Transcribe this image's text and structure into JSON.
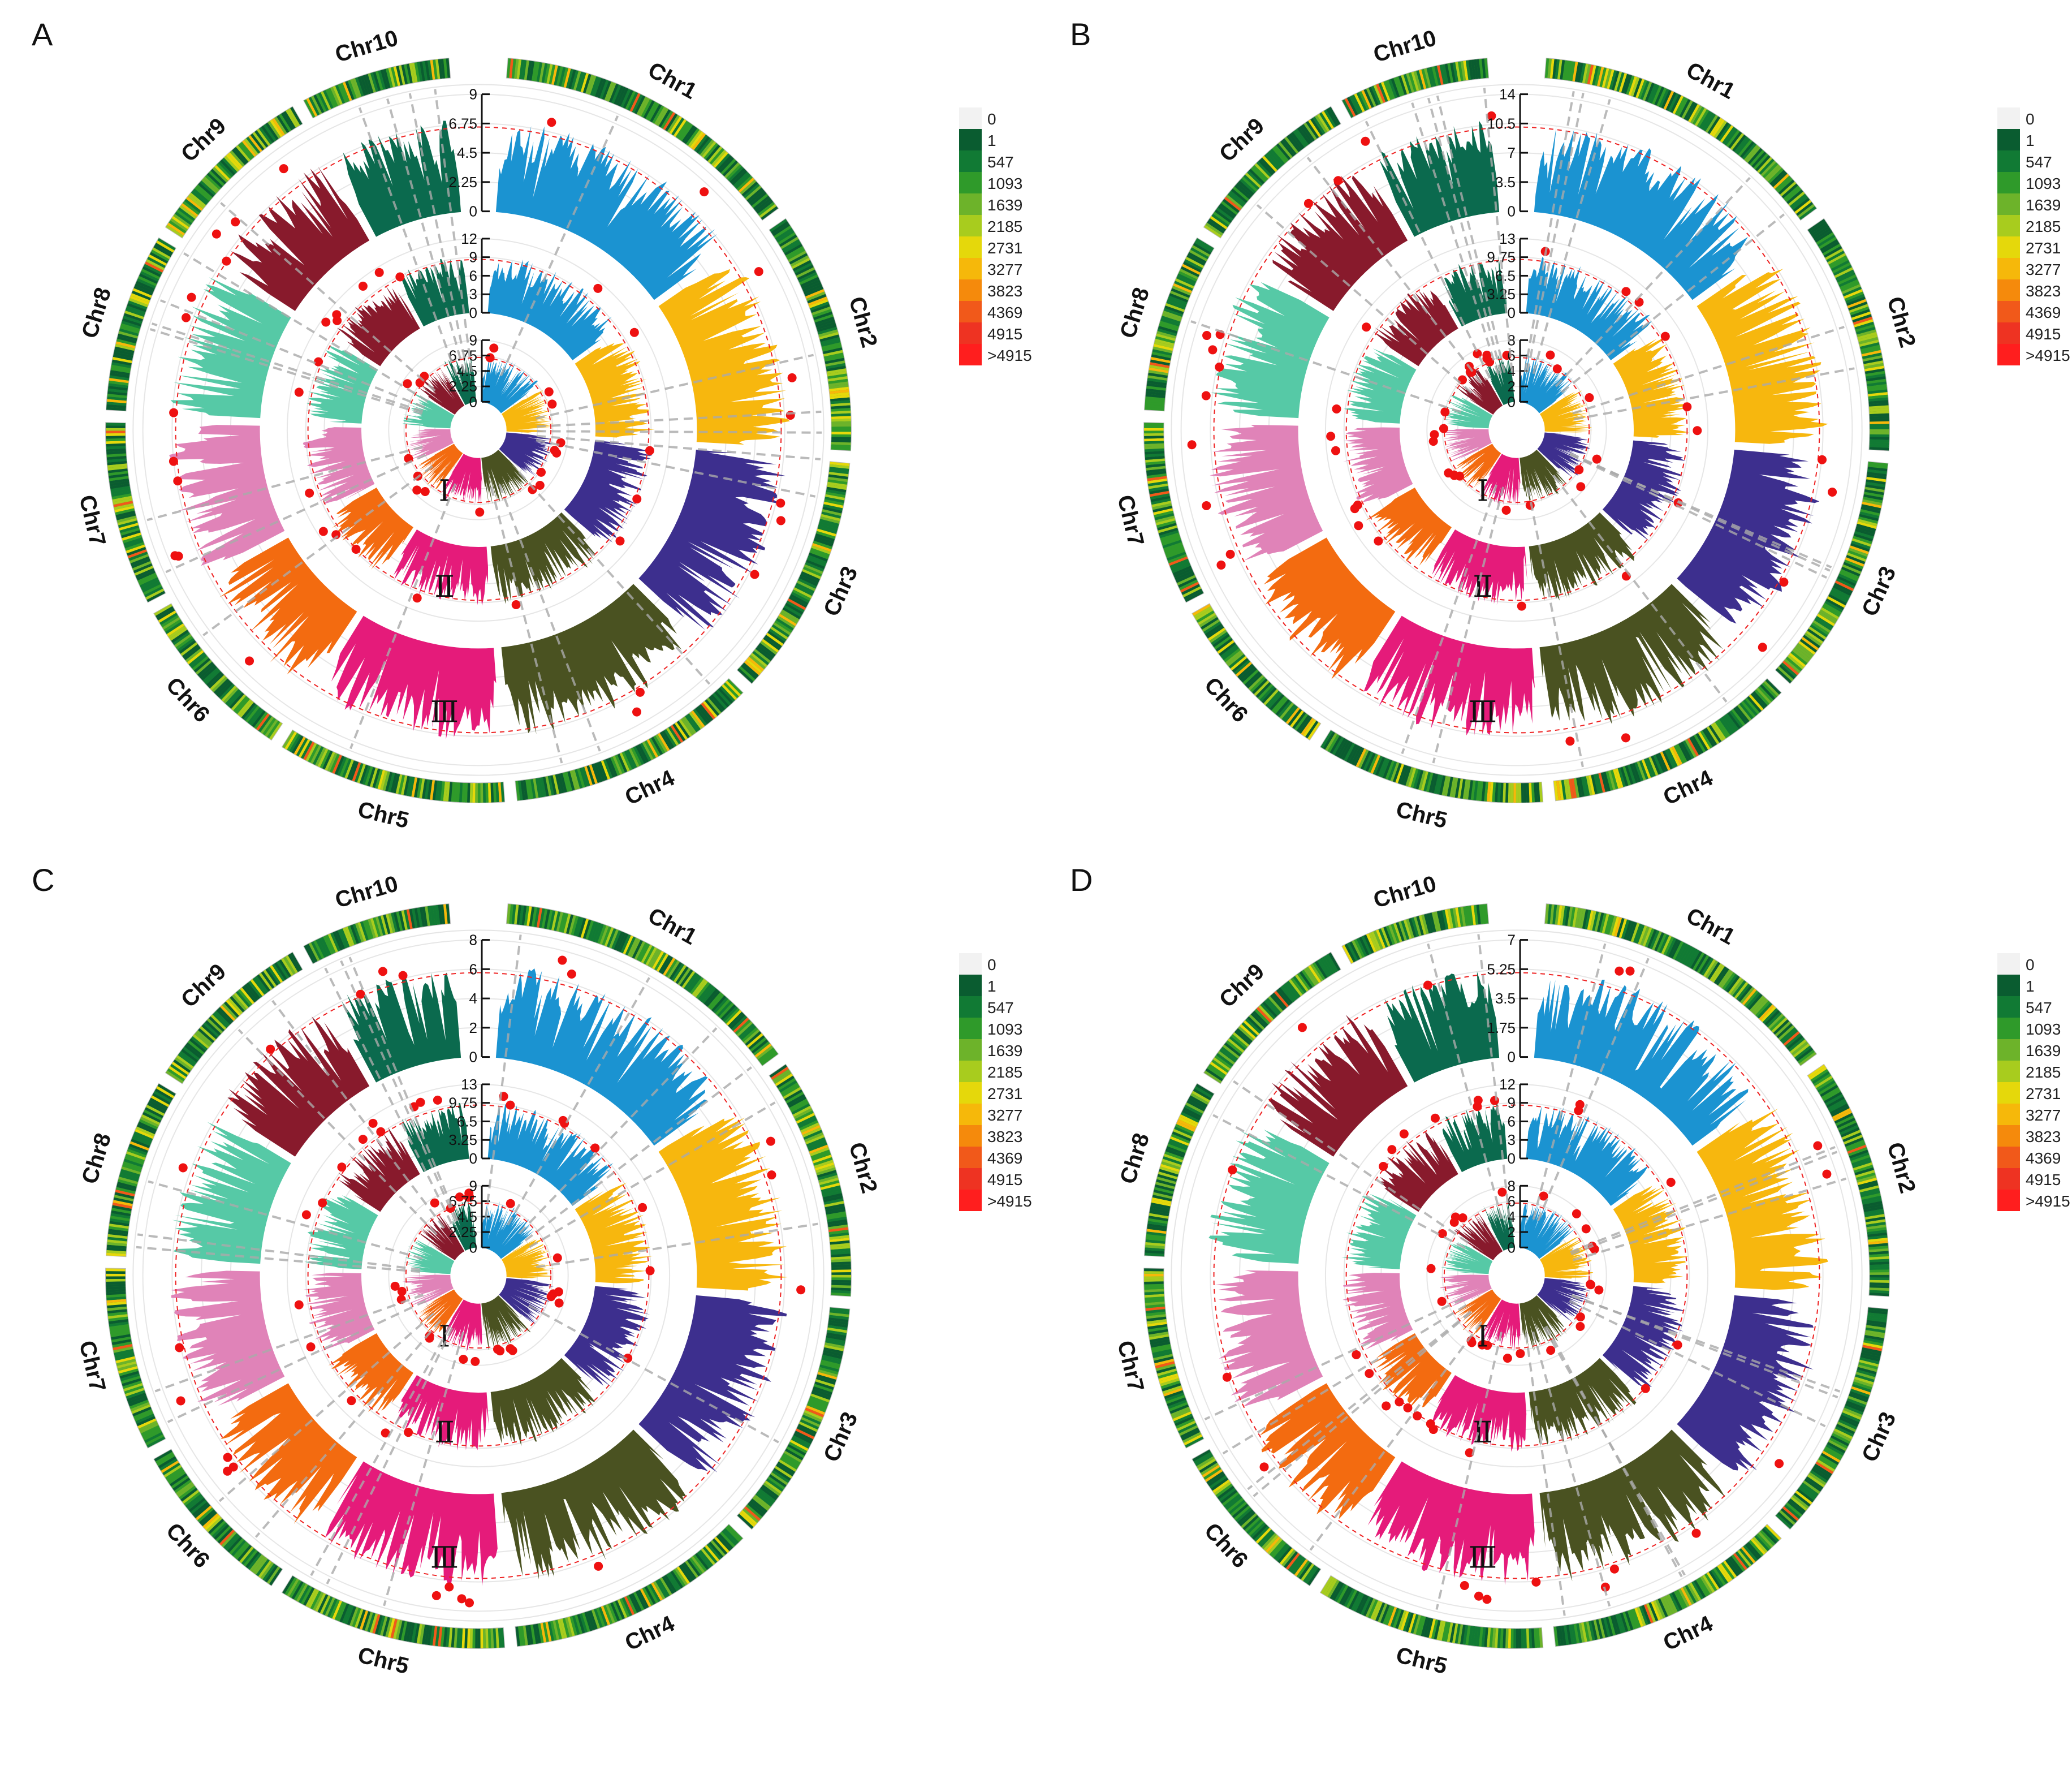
{
  "chart_data": {
    "type": "circular-manhattan",
    "chromosomes": [
      "Chr1",
      "Chr2",
      "Chr3",
      "Chr4",
      "Chr5",
      "Chr6",
      "Chr7",
      "Chr8",
      "Chr9",
      "Chr10"
    ],
    "chromosome_colors": [
      "#1B93D1",
      "#F7B70E",
      "#3D2F8E",
      "#4A5221",
      "#E51B7A",
      "#F36B10",
      "#E083B8",
      "#56C9A6",
      "#881A2C",
      "#0B6A4E"
    ],
    "density_legend": {
      "labels": [
        "0",
        "1",
        "547",
        "1093",
        "1639",
        "2185",
        "2731",
        "3277",
        "3823",
        "4369",
        "4915",
        ">4915"
      ],
      "colors": [
        "#F2F2F2",
        "#0A5C30",
        "#117A34",
        "#2F9A2A",
        "#6DB32A",
        "#A8CC1E",
        "#E5D80B",
        "#F6B80A",
        "#F58A0C",
        "#F1591A",
        "#EE3322",
        "#FF1E1E"
      ]
    },
    "panels": [
      {
        "letter": "A",
        "rings": [
          {
            "roman": "Ⅰ",
            "ticks": [
              "0",
              "2.25",
              "4.5",
              "6.75",
              "9"
            ]
          },
          {
            "roman": "Ⅱ",
            "ticks": [
              "0",
              "3",
              "6",
              "9",
              "12"
            ]
          },
          {
            "roman": "Ⅲ",
            "ticks": [
              "0",
              "2.25",
              "4.5",
              "6.75",
              "9"
            ]
          }
        ]
      },
      {
        "letter": "B",
        "rings": [
          {
            "roman": "Ⅰ",
            "ticks": [
              "0",
              "2",
              "4",
              "6",
              "8"
            ]
          },
          {
            "roman": "Ⅱ",
            "ticks": [
              "0",
              "3.25",
              "6.5",
              "9.75",
              "13"
            ]
          },
          {
            "roman": "Ⅲ",
            "ticks": [
              "0",
              "3.5",
              "7",
              "10.5",
              "14"
            ]
          }
        ]
      },
      {
        "letter": "C",
        "rings": [
          {
            "roman": "Ⅰ",
            "ticks": [
              "0",
              "2.25",
              "4.5",
              "6.75",
              "9"
            ]
          },
          {
            "roman": "Ⅱ",
            "ticks": [
              "0",
              "3.25",
              "6.5",
              "9.75",
              "13"
            ]
          },
          {
            "roman": "Ⅲ",
            "ticks": [
              "0",
              "2",
              "4",
              "6",
              "8"
            ]
          }
        ]
      },
      {
        "letter": "D",
        "rings": [
          {
            "roman": "Ⅰ",
            "ticks": [
              "0",
              "2",
              "4",
              "6",
              "8"
            ]
          },
          {
            "roman": "Ⅱ",
            "ticks": [
              "0",
              "3",
              "6",
              "9",
              "12"
            ]
          },
          {
            "roman": "Ⅲ",
            "ticks": [
              "0",
              "1.75",
              "3.5",
              "5.25",
              "7"
            ]
          }
        ]
      }
    ]
  }
}
